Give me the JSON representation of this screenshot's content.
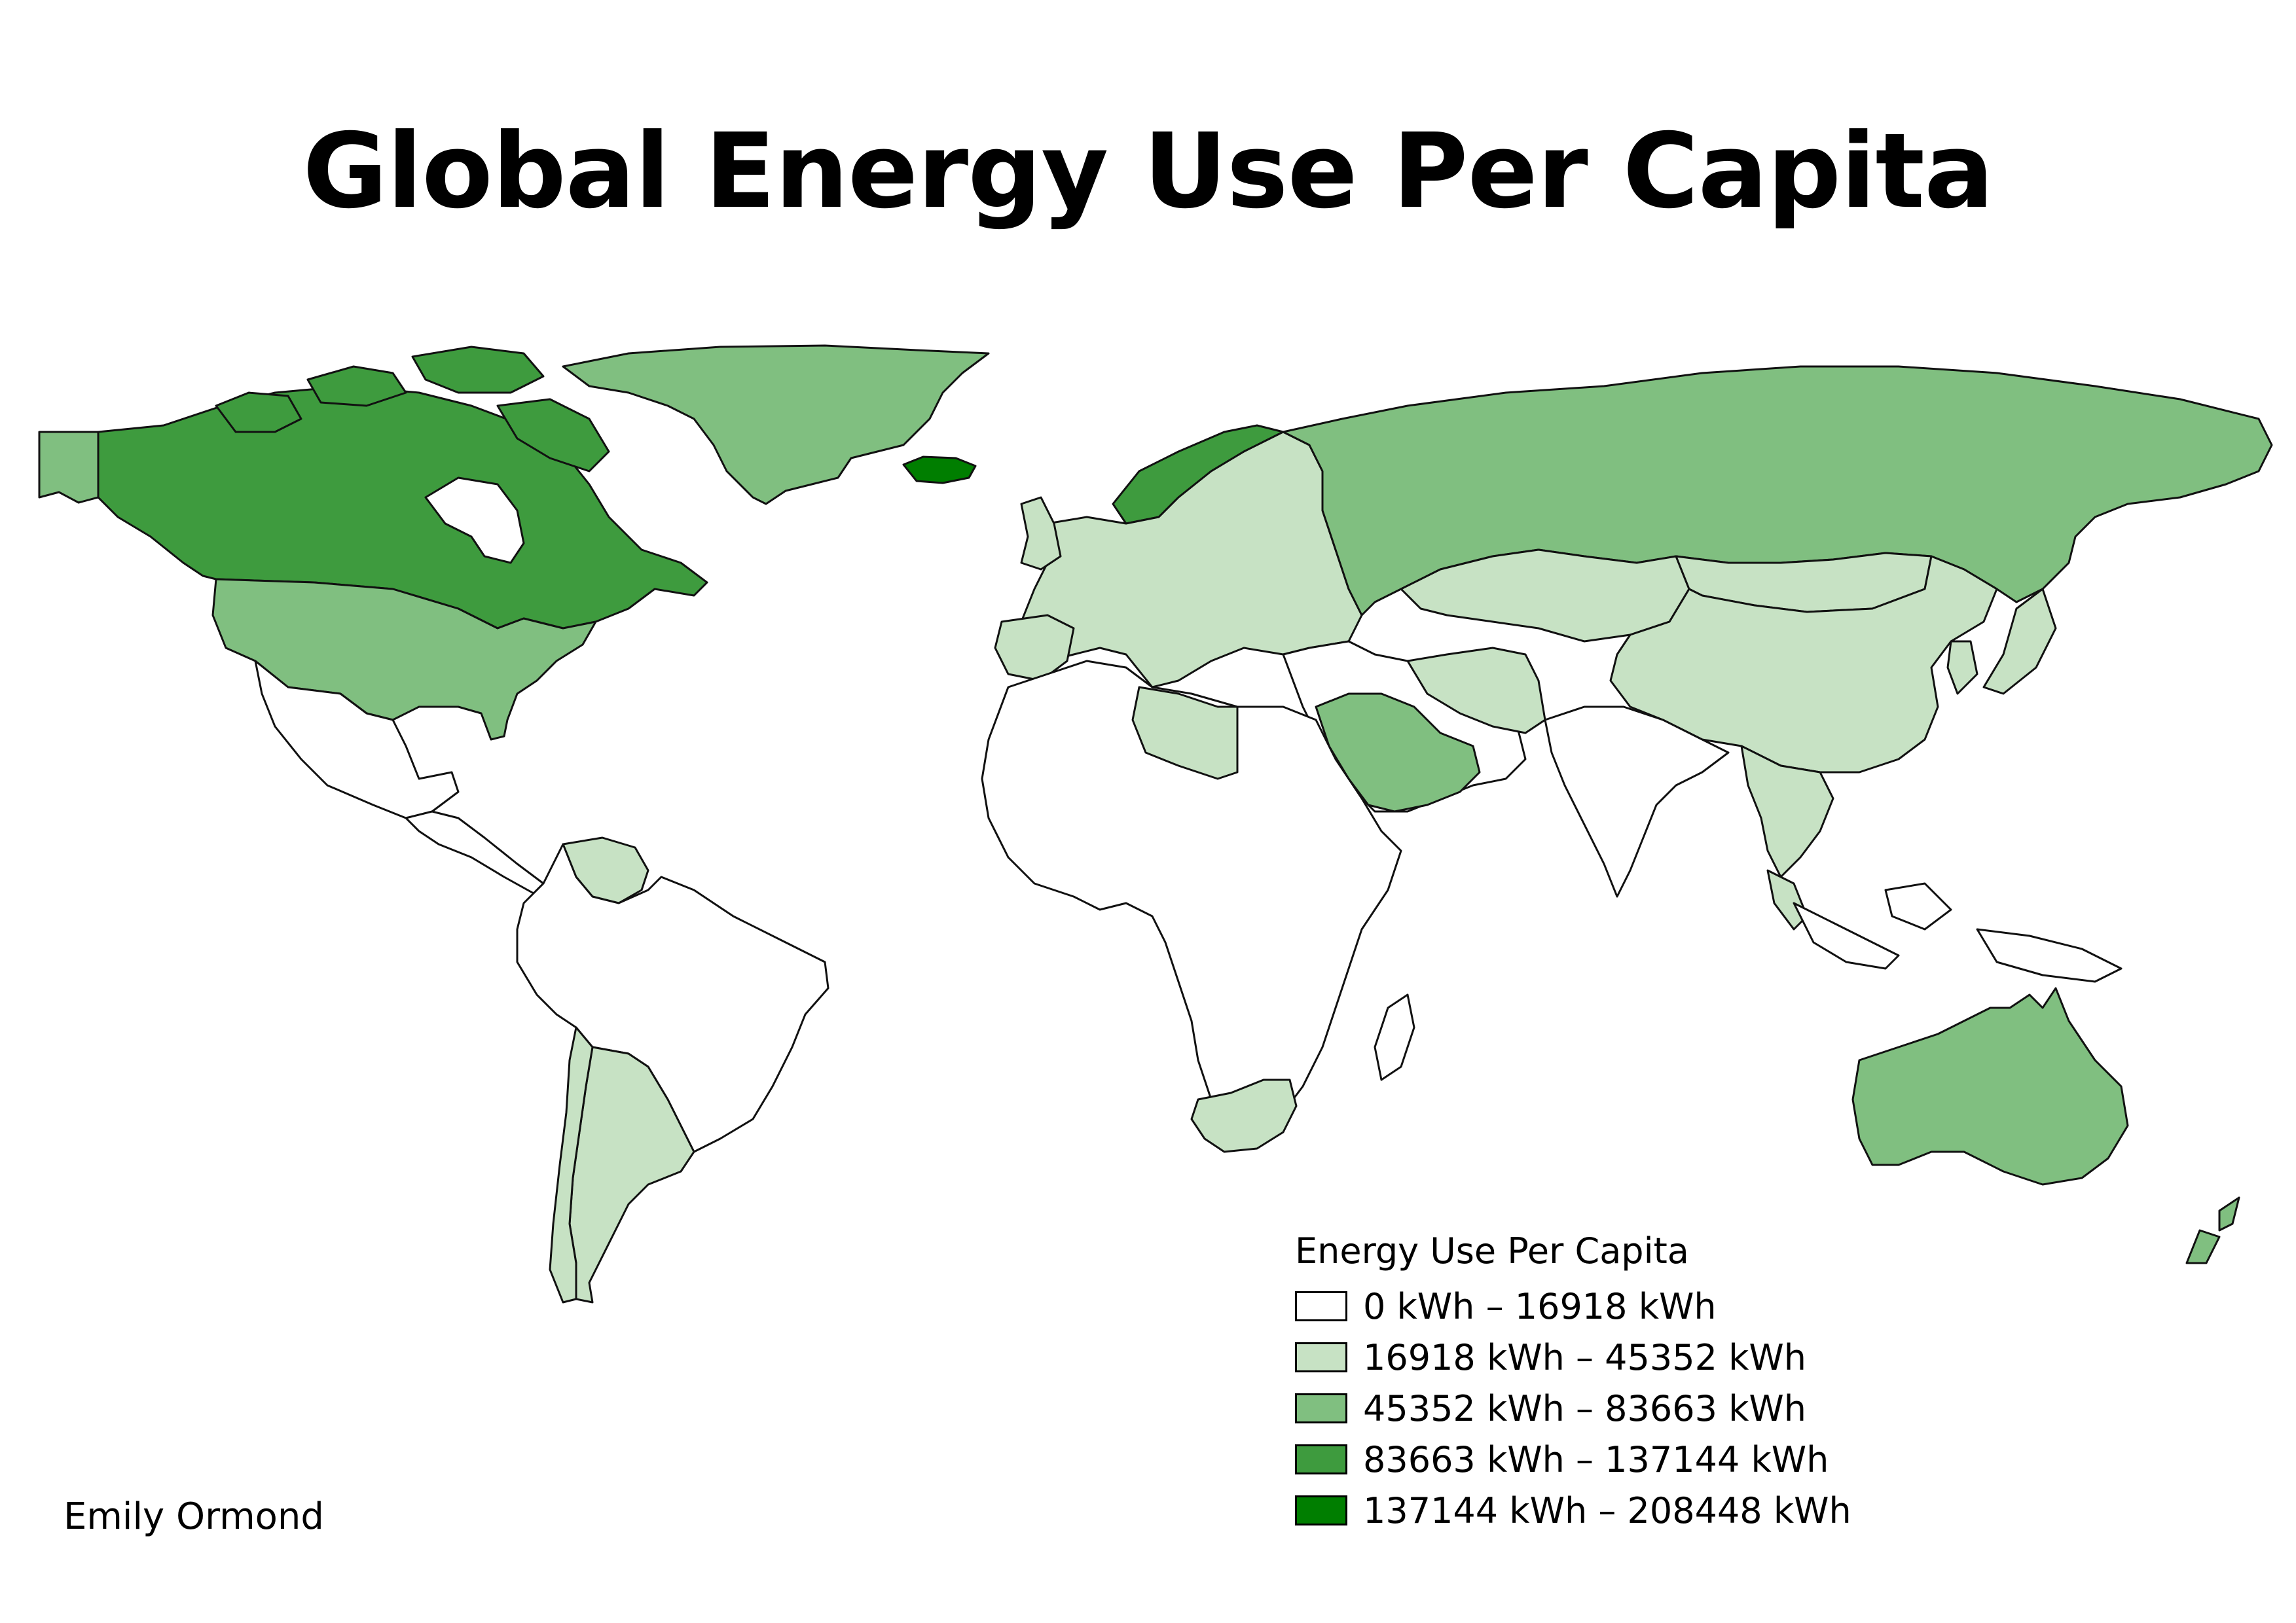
{
  "title": "Global Energy Use Per Capita",
  "author": "Emily Ormond",
  "legend": {
    "title": "Energy Use Per Capita",
    "classes": [
      {
        "label": "0 kWh – 16918 kWh",
        "color": "#ffffff"
      },
      {
        "label": "16918 kWh – 45352 kWh",
        "color": "#c7e2c4"
      },
      {
        "label": "45352 kWh – 83663 kWh",
        "color": "#80bf80"
      },
      {
        "label": "83663 kWh – 137144 kWh",
        "color": "#3e9b3e"
      },
      {
        "label": "137144 kWh – 208448 kWh",
        "color": "#007e00"
      }
    ]
  },
  "regions": [
    {
      "name": "Canada",
      "class": 3
    },
    {
      "name": "United States",
      "class": 2
    },
    {
      "name": "Alaska",
      "class": 2
    },
    {
      "name": "Greenland",
      "class": 2
    },
    {
      "name": "Iceland",
      "class": 4
    },
    {
      "name": "Mexico",
      "class": 0
    },
    {
      "name": "Central America",
      "class": 0
    },
    {
      "name": "Venezuela",
      "class": 1
    },
    {
      "name": "South America",
      "class": 0
    },
    {
      "name": "Argentina",
      "class": 1
    },
    {
      "name": "Chile",
      "class": 1
    },
    {
      "name": "Norway",
      "class": 3
    },
    {
      "name": "Europe",
      "class": 1
    },
    {
      "name": "Russia",
      "class": 2
    },
    {
      "name": "Kazakhstan",
      "class": 1
    },
    {
      "name": "China",
      "class": 1
    },
    {
      "name": "Mongolia",
      "class": 1
    },
    {
      "name": "Africa",
      "class": 0
    },
    {
      "name": "Libya",
      "class": 1
    },
    {
      "name": "South Africa",
      "class": 1
    },
    {
      "name": "Saudi Arabia",
      "class": 2
    },
    {
      "name": "Iran",
      "class": 1
    },
    {
      "name": "India",
      "class": 0
    },
    {
      "name": "Southeast Asia",
      "class": 1
    },
    {
      "name": "Japan",
      "class": 1
    },
    {
      "name": "Australia",
      "class": 2
    },
    {
      "name": "New Zealand",
      "class": 2
    }
  ]
}
